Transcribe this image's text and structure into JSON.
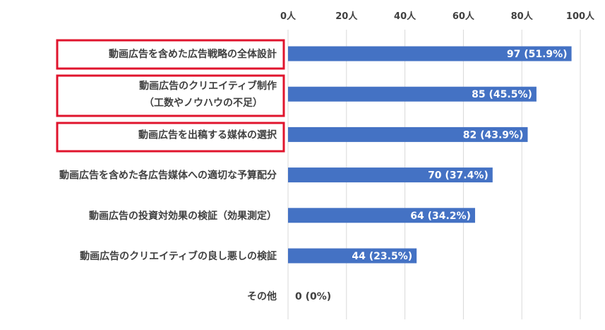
{
  "chart_data": {
    "type": "bar",
    "orientation": "horizontal",
    "title": "",
    "xlabel": "",
    "ylabel": "",
    "xlim": [
      0,
      100
    ],
    "x_ticks": [
      0,
      20,
      40,
      60,
      80,
      100
    ],
    "x_tick_labels": [
      "0人",
      "20人",
      "40人",
      "60人",
      "80人",
      "100人"
    ],
    "x_axis_position": "top",
    "grid": true,
    "bar_color": "#4472c4",
    "highlight_color": "#e0142d",
    "categories": [
      "動画広告を含めた広告戦略の全体設計",
      "動画広告のクリエイティブ制作\n（工数やノウハウの不足）",
      "動画広告を出稿する媒体の選択",
      "動画広告を含めた各広告媒体への適切な予算配分",
      "動画広告の投資対効果の検証（効果測定）",
      "動画広告のクリエイティブの良し悪しの検証",
      "その他"
    ],
    "values": [
      97,
      85,
      82,
      70,
      64,
      44,
      0
    ],
    "data_labels": [
      "97 (51.9%)",
      "85 (45.5%)",
      "82 (43.9%)",
      "70 (37.4%)",
      "64 (34.2%)",
      "44 (23.5%)",
      "0 (0%)"
    ],
    "highlighted": [
      true,
      true,
      true,
      false,
      false,
      false,
      false
    ]
  }
}
